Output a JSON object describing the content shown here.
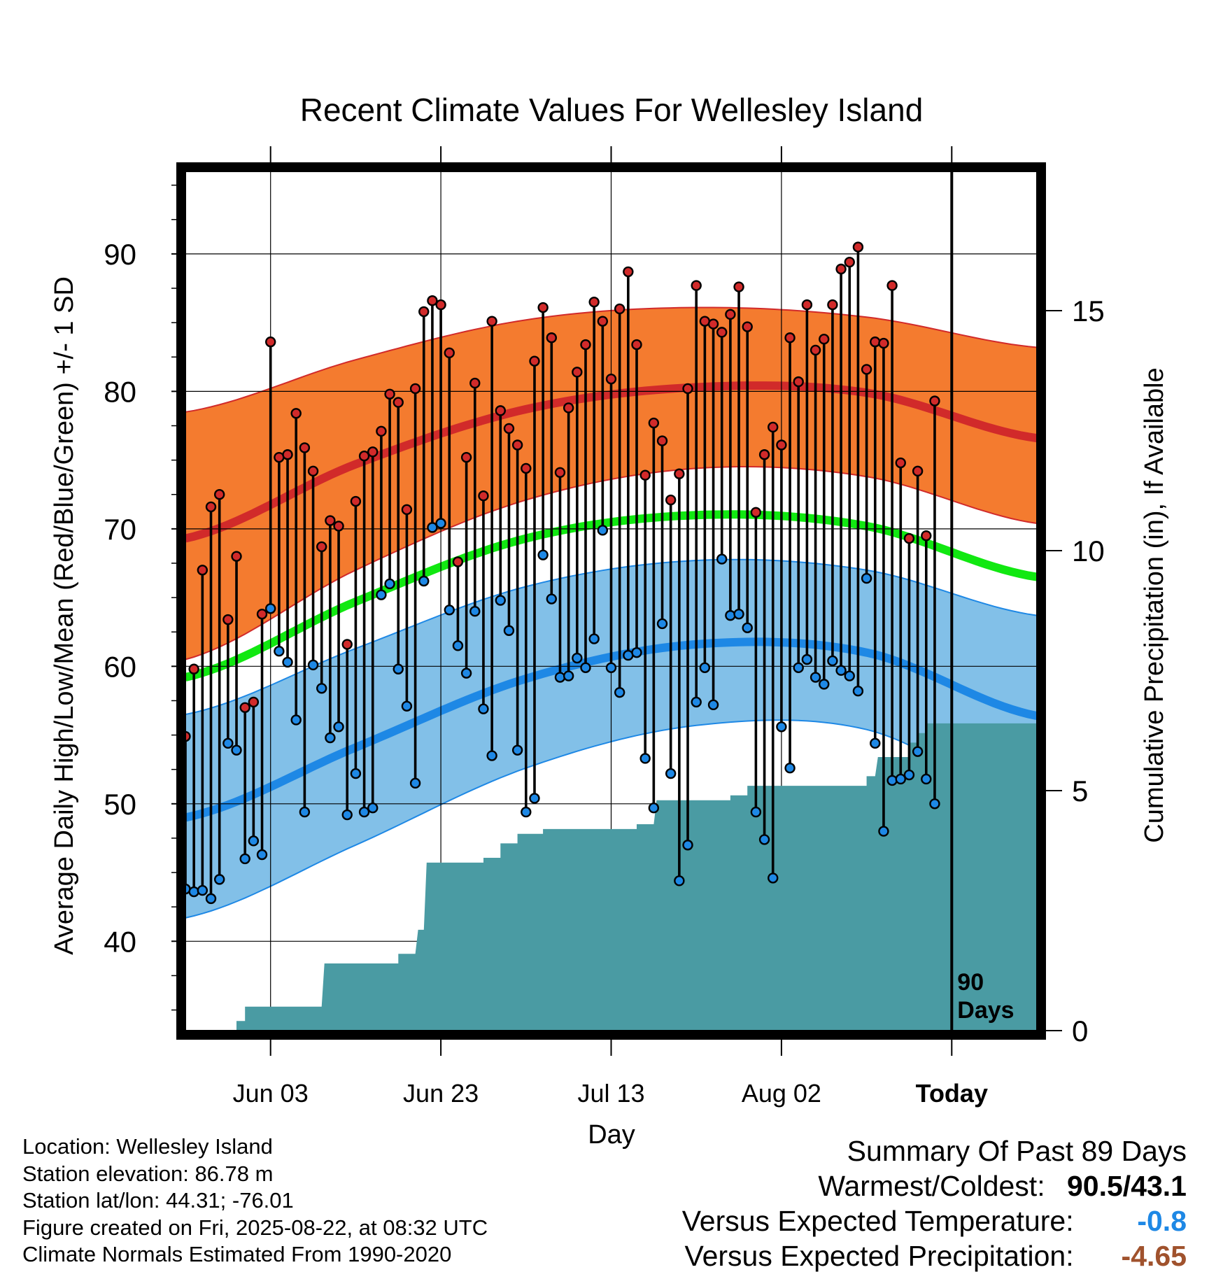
{
  "chart_data": {
    "type": "line",
    "title": "Recent Climate Values For Wellesley Island",
    "xlabel": "Day",
    "ylabel": "Average Daily High/Low/Mean (Red/Blue/Green) +/- 1 SD",
    "y2label": "Cumulative Precipitation (in), If Available",
    "x_tick_labels": [
      "Jun 03",
      "Jun 23",
      "Jul 13",
      "Aug 02",
      "Today"
    ],
    "x_tick_days": [
      10,
      30,
      50,
      70,
      90
    ],
    "x_range_days": [
      0,
      100
    ],
    "ylim": [
      33.5,
      96
    ],
    "y_ticks": [
      40,
      50,
      60,
      70,
      80,
      90
    ],
    "y2lim": [
      0,
      17.9
    ],
    "y2_ticks": [
      0,
      5,
      10,
      15
    ],
    "grid": true,
    "annotation": "90\nDays",
    "normals": {
      "high_mean": [
        69.3,
        74.7,
        78.7,
        80.3,
        79.9,
        76.6
      ],
      "high_upper": [
        78.5,
        82.3,
        85.2,
        86.1,
        85.4,
        83.2
      ],
      "high_lower": [
        60.5,
        67.0,
        72.1,
        74.4,
        73.8,
        70.4
      ],
      "mean": [
        59.2,
        64.7,
        69.3,
        71.0,
        70.2,
        66.5
      ],
      "low_mean": [
        49.0,
        54.1,
        59.1,
        61.6,
        61.0,
        56.4
      ],
      "low_upper": [
        56.5,
        61.3,
        65.8,
        67.7,
        67.0,
        63.7
      ],
      "low_lower": [
        41.7,
        47.0,
        52.6,
        55.7,
        55.4,
        49.9
      ],
      "normals_x_days": [
        0,
        20,
        40,
        60,
        80,
        100
      ]
    },
    "series": [
      {
        "name": "High",
        "color": "#d12a2a",
        "values": [
          54.9,
          59.8,
          67.0,
          71.6,
          72.5,
          63.4,
          68.0,
          57.0,
          57.4,
          63.8,
          83.6,
          75.2,
          75.4,
          78.4,
          75.9,
          74.2,
          68.7,
          70.6,
          70.2,
          61.6,
          72.0,
          75.3,
          75.6,
          77.1,
          79.8,
          79.2,
          71.4,
          80.2,
          85.8,
          86.6,
          86.3,
          82.8,
          67.6,
          75.2,
          80.6,
          72.4,
          85.1,
          78.6,
          77.3,
          76.1,
          74.4,
          82.2,
          86.1,
          83.9,
          74.1,
          78.8,
          81.4,
          83.4,
          86.5,
          85.1,
          80.9,
          86.0,
          88.7,
          83.4,
          73.9,
          77.7,
          76.4,
          72.1,
          74.0,
          80.2,
          87.7,
          85.1,
          84.9,
          84.3,
          85.6,
          87.6,
          84.7,
          71.2,
          75.4,
          77.4,
          76.1,
          83.9,
          80.7,
          86.3,
          83.0,
          83.8,
          86.3,
          88.9,
          89.4,
          90.5,
          81.6,
          83.6,
          83.5,
          87.7,
          74.8,
          69.3,
          74.2,
          69.5,
          79.3
        ]
      },
      {
        "name": "Low",
        "color": "#1e88e5",
        "values": [
          43.8,
          43.6,
          43.7,
          43.1,
          44.5,
          54.4,
          53.9,
          46.0,
          47.3,
          46.3,
          64.2,
          61.1,
          60.3,
          56.1,
          49.4,
          60.1,
          58.4,
          54.8,
          55.6,
          49.2,
          52.2,
          49.4,
          49.7,
          65.2,
          66.0,
          59.8,
          57.1,
          51.5,
          66.2,
          70.1,
          70.4,
          64.1,
          61.5,
          59.5,
          64.0,
          56.9,
          53.5,
          64.8,
          62.6,
          53.9,
          49.4,
          50.4,
          68.1,
          64.9,
          59.2,
          59.3,
          60.6,
          59.9,
          62.0,
          69.9,
          59.9,
          58.1,
          60.8,
          61.0,
          53.3,
          49.7,
          63.1,
          52.2,
          44.4,
          47.0,
          57.4,
          59.9,
          57.2,
          67.8,
          63.7,
          63.8,
          62.8,
          49.4,
          47.4,
          44.6,
          55.6,
          52.6,
          59.9,
          60.5,
          59.2,
          58.7,
          60.4,
          59.7,
          59.3,
          58.2,
          66.4,
          54.4,
          48.0,
          51.7,
          51.8,
          52.1,
          53.8,
          51.8,
          50.0
        ]
      },
      {
        "name": "Cumulative Precipitation",
        "color": "#4a9ba3",
        "x": [
          0,
          5,
          6,
          7,
          16,
          25,
          27,
          28,
          35,
          37,
          39,
          42,
          53,
          55,
          64,
          66,
          80,
          81,
          85,
          86,
          87,
          100
        ],
        "values": [
          0,
          0,
          0.2,
          0.5,
          1.4,
          1.6,
          2.1,
          3.5,
          3.6,
          3.9,
          4.1,
          4.2,
          4.3,
          4.8,
          4.9,
          5.1,
          5.3,
          5.7,
          6.0,
          6.2,
          6.4,
          6.4
        ]
      }
    ]
  },
  "footer": {
    "location": "Location: Wellesley Island",
    "elevation": "Station elevation: 86.78 m",
    "latlon": "Station lat/lon: 44.31; -76.01",
    "created": "Figure created on Fri, 2025-08-22, at 08:32 UTC",
    "normals": "Climate Normals Estimated From 1990-2020"
  },
  "summary": {
    "title": "Summary Of Past 89 Days",
    "warm_cold_label": "Warmest/Coldest:",
    "warm_cold_value": "90.5/43.1",
    "temp_label": "Versus Expected Temperature:",
    "temp_value": "-0.8",
    "temp_color": "#1e88e5",
    "precip_label": "Versus Expected Precipitation:",
    "precip_value": "-4.65",
    "precip_color": "#a0522d"
  },
  "colors": {
    "high_band": "#f47b2f",
    "high_line": "#d12a2a",
    "low_band": "#82c0e8",
    "low_line": "#1e88e5",
    "mean_line": "#11e811",
    "precip_fill": "#4a9ba3"
  }
}
